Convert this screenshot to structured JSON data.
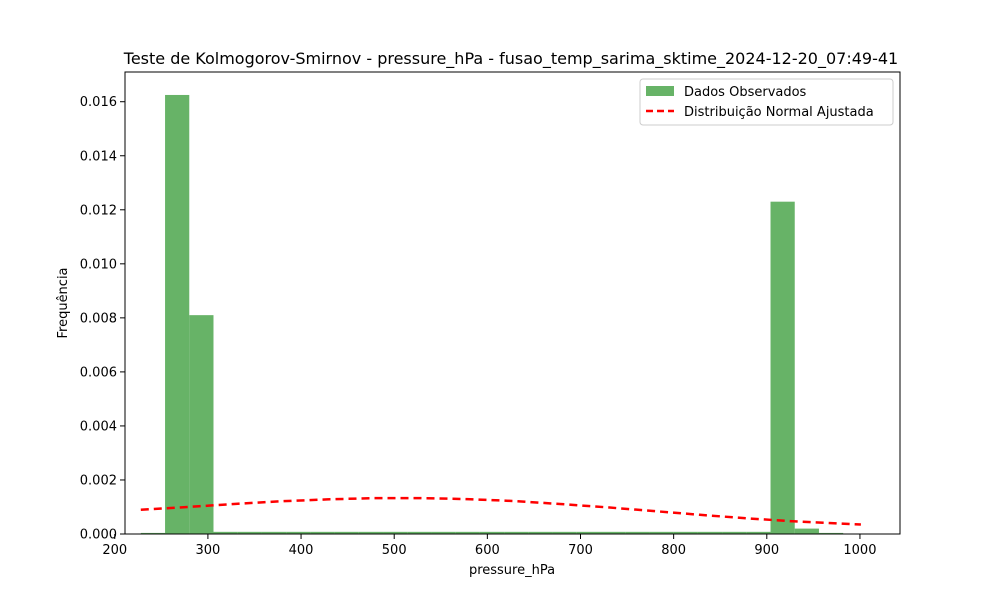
{
  "chart_data": {
    "type": "bar",
    "title": "Teste de Kolmogorov-Smirnov - pressure_hPa - fusao_temp_sarima_sktime_2024-12-20_07:49-41",
    "xlabel": "pressure_hPa",
    "ylabel": "Frequência",
    "xlim": [
      211,
      1043
    ],
    "ylim": [
      0,
      0.0171
    ],
    "xticks": [
      200,
      300,
      400,
      500,
      600,
      700,
      800,
      900,
      1000
    ],
    "yticks": [
      0.0,
      0.002,
      0.004,
      0.006,
      0.008,
      0.01,
      0.012,
      0.014,
      0.016
    ],
    "ytick_labels": [
      "0.000",
      "0.002",
      "0.004",
      "0.006",
      "0.008",
      "0.010",
      "0.012",
      "0.014",
      "0.016"
    ],
    "legend_position": "top-right",
    "histogram": {
      "name": "Dados Observados",
      "color": "#4ca64c",
      "bins": [
        {
          "x0": 228,
          "x1": 254,
          "value": 4e-05
        },
        {
          "x0": 254,
          "x1": 280,
          "value": 0.01625
        },
        {
          "x0": 280,
          "x1": 306,
          "value": 0.0081
        },
        {
          "x0": 306,
          "x1": 332,
          "value": 8e-05
        },
        {
          "x0": 332,
          "x1": 358,
          "value": 8e-05
        },
        {
          "x0": 358,
          "x1": 384,
          "value": 8e-05
        },
        {
          "x0": 384,
          "x1": 410,
          "value": 8e-05
        },
        {
          "x0": 410,
          "x1": 436,
          "value": 8e-05
        },
        {
          "x0": 436,
          "x1": 462,
          "value": 8e-05
        },
        {
          "x0": 462,
          "x1": 488,
          "value": 8e-05
        },
        {
          "x0": 488,
          "x1": 514,
          "value": 8e-05
        },
        {
          "x0": 514,
          "x1": 540,
          "value": 8e-05
        },
        {
          "x0": 540,
          "x1": 566,
          "value": 8e-05
        },
        {
          "x0": 566,
          "x1": 592,
          "value": 8e-05
        },
        {
          "x0": 592,
          "x1": 618,
          "value": 8e-05
        },
        {
          "x0": 618,
          "x1": 644,
          "value": 8e-05
        },
        {
          "x0": 644,
          "x1": 670,
          "value": 8e-05
        },
        {
          "x0": 670,
          "x1": 696,
          "value": 8e-05
        },
        {
          "x0": 696,
          "x1": 722,
          "value": 8e-05
        },
        {
          "x0": 722,
          "x1": 748,
          "value": 8e-05
        },
        {
          "x0": 748,
          "x1": 774,
          "value": 8e-05
        },
        {
          "x0": 774,
          "x1": 800,
          "value": 8e-05
        },
        {
          "x0": 800,
          "x1": 826,
          "value": 8e-05
        },
        {
          "x0": 826,
          "x1": 852,
          "value": 8e-05
        },
        {
          "x0": 852,
          "x1": 878,
          "value": 8e-05
        },
        {
          "x0": 878,
          "x1": 904,
          "value": 8e-05
        },
        {
          "x0": 904,
          "x1": 930,
          "value": 0.0123
        },
        {
          "x0": 930,
          "x1": 956,
          "value": 0.0002
        },
        {
          "x0": 956,
          "x1": 982,
          "value": 4e-05
        }
      ]
    },
    "fit": {
      "name": "Distribuição Normal Ajustada",
      "color": "#ff0000",
      "style": "dashed",
      "x": [
        228,
        278,
        328,
        378,
        428,
        478,
        528,
        578,
        628,
        678,
        728,
        778,
        828,
        878,
        928,
        978,
        1001
      ],
      "y": [
        0.0009,
        0.001,
        0.00111,
        0.00121,
        0.00128,
        0.00133,
        0.00133,
        0.00129,
        0.00122,
        0.00111,
        0.00099,
        0.00085,
        0.00071,
        0.00058,
        0.00047,
        0.00039,
        0.00035
      ]
    }
  }
}
